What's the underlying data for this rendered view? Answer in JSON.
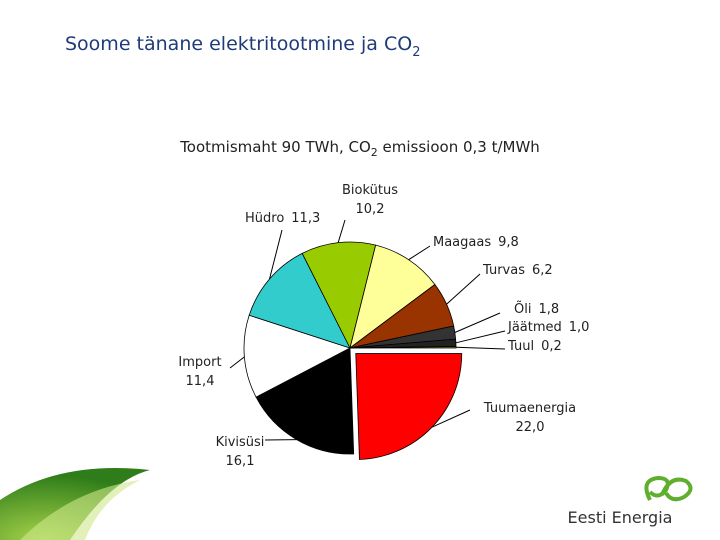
{
  "chart_data": {
    "type": "pie",
    "title": [
      "Soome tänane elektritootmine ja CO",
      "2"
    ],
    "subtitle": [
      "Tootmismaht 90 TWh, CO",
      "2",
      " emissioon 0,3 t/MWh"
    ],
    "categories": [
      "Tuumaenergia",
      "Kivisüsi",
      "Import",
      "Hüdro",
      "Biokütus",
      "Maagaas",
      "Turvas",
      "Õli",
      "Jäätmed",
      "Tuul"
    ],
    "values": [
      22.0,
      16.1,
      11.4,
      11.3,
      10.2,
      9.8,
      6.2,
      1.8,
      1.0,
      0.2
    ],
    "value_labels": [
      "22,0",
      "16,1",
      "11,4",
      "11,3",
      "10,2",
      "9,8",
      "6,2",
      "1,8",
      "1,0",
      "0,2"
    ],
    "colors": [
      "#ff0000",
      "#000000",
      "#ffffff",
      "#33cccc",
      "#99cc00",
      "#ffff99",
      "#993300",
      "#333333",
      "#222222",
      "#808000"
    ]
  },
  "logo": "Eesti Energia"
}
